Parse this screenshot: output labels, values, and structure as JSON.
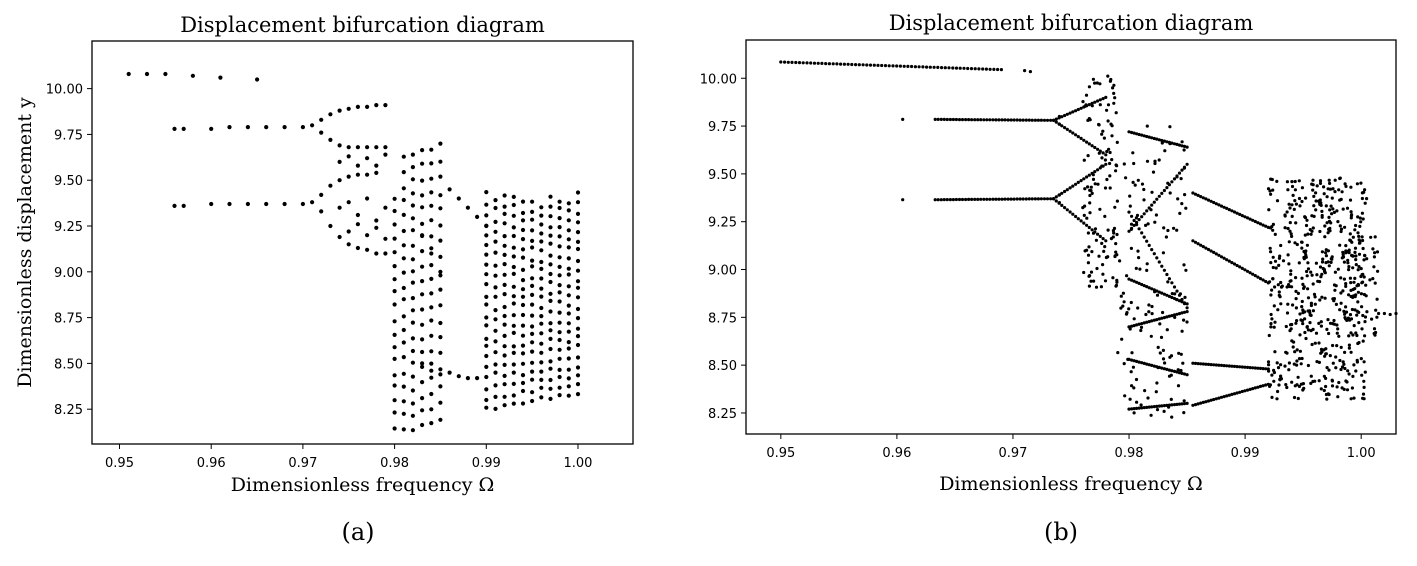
{
  "figure": {
    "panel_labels": [
      "(a)",
      "(b)"
    ]
  },
  "chart_data": [
    {
      "type": "scatter",
      "title": "Displacement bifurcation diagram",
      "xlabel": "Dimensionless frequency Ω",
      "ylabel": "Dimensionless displacement y",
      "xlim": [
        0.947,
        1.006
      ],
      "ylim": [
        8.06,
        10.26
      ],
      "xticks": [
        0.95,
        0.96,
        0.97,
        0.98,
        0.99,
        1.0
      ],
      "xtick_labels": [
        "0.95",
        "0.96",
        "0.97",
        "0.98",
        "0.99",
        "1.00"
      ],
      "yticks": [
        8.25,
        8.5,
        8.75,
        9.0,
        9.25,
        9.5,
        9.75,
        10.0
      ],
      "ytick_labels": [
        "8.25",
        "8.50",
        "8.75",
        "9.00",
        "9.25",
        "9.50",
        "9.75",
        "10.00"
      ],
      "grid": false,
      "marker_color": "#000000",
      "points": [
        [
          0.951,
          10.08
        ],
        [
          0.953,
          10.08
        ],
        [
          0.955,
          10.08
        ],
        [
          0.958,
          10.07
        ],
        [
          0.961,
          10.06
        ],
        [
          0.965,
          10.05
        ],
        [
          0.956,
          9.78
        ],
        [
          0.957,
          9.78
        ],
        [
          0.96,
          9.78
        ],
        [
          0.962,
          9.79
        ],
        [
          0.964,
          9.79
        ],
        [
          0.966,
          9.79
        ],
        [
          0.968,
          9.79
        ],
        [
          0.97,
          9.79
        ],
        [
          0.971,
          9.8
        ],
        [
          0.956,
          9.36
        ],
        [
          0.957,
          9.36
        ],
        [
          0.96,
          9.37
        ],
        [
          0.962,
          9.37
        ],
        [
          0.964,
          9.37
        ],
        [
          0.966,
          9.37
        ],
        [
          0.968,
          9.37
        ],
        [
          0.97,
          9.37
        ],
        [
          0.971,
          9.38
        ],
        [
          0.972,
          9.83
        ],
        [
          0.973,
          9.86
        ],
        [
          0.974,
          9.88
        ],
        [
          0.975,
          9.89
        ],
        [
          0.976,
          9.9
        ],
        [
          0.977,
          9.9
        ],
        [
          0.978,
          9.91
        ],
        [
          0.979,
          9.91
        ],
        [
          0.972,
          9.76
        ],
        [
          0.973,
          9.72
        ],
        [
          0.974,
          9.69
        ],
        [
          0.975,
          9.68
        ],
        [
          0.976,
          9.68
        ],
        [
          0.977,
          9.68
        ],
        [
          0.978,
          9.68
        ],
        [
          0.979,
          9.68
        ],
        [
          0.972,
          9.42
        ],
        [
          0.973,
          9.47
        ],
        [
          0.974,
          9.5
        ],
        [
          0.975,
          9.52
        ],
        [
          0.976,
          9.53
        ],
        [
          0.977,
          9.53
        ],
        [
          0.978,
          9.54
        ],
        [
          0.972,
          9.33
        ],
        [
          0.973,
          9.25
        ],
        [
          0.974,
          9.19
        ],
        [
          0.975,
          9.15
        ],
        [
          0.976,
          9.13
        ],
        [
          0.977,
          9.12
        ],
        [
          0.978,
          9.1
        ],
        [
          0.979,
          9.1
        ],
        [
          0.974,
          9.6
        ],
        [
          0.975,
          9.63
        ],
        [
          0.976,
          9.58
        ],
        [
          0.977,
          9.62
        ],
        [
          0.978,
          9.58
        ],
        [
          0.979,
          9.64
        ],
        [
          0.974,
          9.35
        ],
        [
          0.975,
          9.38
        ],
        [
          0.976,
          9.31
        ],
        [
          0.977,
          9.4
        ],
        [
          0.978,
          9.28
        ],
        [
          0.979,
          9.35
        ],
        [
          0.975,
          9.22
        ],
        [
          0.976,
          9.26
        ],
        [
          0.977,
          9.2
        ],
        [
          0.978,
          9.24
        ],
        [
          0.979,
          9.18
        ],
        [
          0.986,
          9.45
        ],
        [
          0.987,
          9.4
        ],
        [
          0.988,
          9.35
        ],
        [
          0.989,
          9.3
        ],
        [
          0.99,
          9.25
        ],
        [
          0.986,
          8.45
        ],
        [
          0.987,
          8.43
        ],
        [
          0.988,
          8.42
        ],
        [
          0.989,
          8.42
        ],
        [
          0.983,
          9.2
        ],
        [
          0.984,
          9.1
        ],
        [
          0.985,
          9.0
        ],
        [
          0.983,
          8.5
        ],
        [
          0.984,
          8.46
        ],
        [
          0.985,
          8.44
        ]
      ],
      "bands": [
        {
          "x": 0.98,
          "ymin": 8.15,
          "ymax": 9.4,
          "n": 18
        },
        {
          "x": 0.981,
          "ymin": 8.14,
          "ymax": 9.62,
          "n": 20
        },
        {
          "x": 0.982,
          "ymin": 8.14,
          "ymax": 9.65,
          "n": 22
        },
        {
          "x": 0.983,
          "ymin": 8.16,
          "ymax": 9.66,
          "n": 20
        },
        {
          "x": 0.984,
          "ymin": 8.18,
          "ymax": 9.67,
          "n": 20
        },
        {
          "x": 0.985,
          "ymin": 8.2,
          "ymax": 9.69,
          "n": 18
        },
        {
          "x": 0.99,
          "ymin": 8.25,
          "ymax": 9.43,
          "n": 22
        },
        {
          "x": 0.991,
          "ymin": 8.26,
          "ymax": 9.4,
          "n": 20
        },
        {
          "x": 0.992,
          "ymin": 8.27,
          "ymax": 9.42,
          "n": 22
        },
        {
          "x": 0.993,
          "ymin": 8.28,
          "ymax": 9.41,
          "n": 22
        },
        {
          "x": 0.994,
          "ymin": 8.29,
          "ymax": 9.38,
          "n": 22
        },
        {
          "x": 0.995,
          "ymin": 8.3,
          "ymax": 9.38,
          "n": 22
        },
        {
          "x": 0.996,
          "ymin": 8.31,
          "ymax": 9.36,
          "n": 22
        },
        {
          "x": 0.997,
          "ymin": 8.31,
          "ymax": 9.41,
          "n": 22
        },
        {
          "x": 0.998,
          "ymin": 8.32,
          "ymax": 9.39,
          "n": 22
        },
        {
          "x": 0.999,
          "ymin": 8.32,
          "ymax": 9.38,
          "n": 22
        },
        {
          "x": 1.0,
          "ymin": 8.33,
          "ymax": 9.43,
          "n": 22
        }
      ]
    },
    {
      "type": "scatter",
      "title": "Displacement bifurcation diagram",
      "xlabel": "Dimensionless frequency Ω",
      "ylabel": "Dimensionless displacement y",
      "xlim": [
        0.947,
        1.003
      ],
      "ylim": [
        8.14,
        10.2
      ],
      "xticks": [
        0.95,
        0.96,
        0.97,
        0.98,
        0.99,
        1.0
      ],
      "xtick_labels": [
        "0.95",
        "0.96",
        "0.97",
        "0.98",
        "0.99",
        "1.00"
      ],
      "yticks": [
        8.25,
        8.5,
        8.75,
        9.0,
        9.25,
        9.5,
        9.75,
        10.0
      ],
      "ytick_labels": [
        "8.25",
        "8.50",
        "8.75",
        "9.00",
        "9.25",
        "9.50",
        "9.75",
        "10.00"
      ],
      "grid": false,
      "marker_color": "#000000",
      "curves": [
        {
          "x0": 0.95,
          "x1": 0.969,
          "y0": 10.085,
          "y1": 10.045,
          "n": 60
        },
        {
          "x0": 0.9633,
          "x1": 0.9735,
          "y0": 9.785,
          "y1": 9.78,
          "n": 40
        },
        {
          "x0": 0.9633,
          "x1": 0.9735,
          "y0": 9.365,
          "y1": 9.37,
          "n": 40
        },
        {
          "x0": 0.9735,
          "x1": 0.978,
          "y0": 9.78,
          "y1": 9.9,
          "n": 20
        },
        {
          "x0": 0.9735,
          "x1": 0.978,
          "y0": 9.78,
          "y1": 9.6,
          "n": 20
        },
        {
          "x0": 0.9735,
          "x1": 0.978,
          "y0": 9.37,
          "y1": 9.55,
          "n": 20
        },
        {
          "x0": 0.9735,
          "x1": 0.978,
          "y0": 9.37,
          "y1": 9.15,
          "n": 20
        },
        {
          "x0": 0.98,
          "x1": 0.985,
          "y0": 9.72,
          "y1": 9.64,
          "n": 24
        },
        {
          "x0": 0.98,
          "x1": 0.985,
          "y0": 9.2,
          "y1": 9.55,
          "n": 24
        },
        {
          "x0": 0.98,
          "x1": 0.985,
          "y0": 9.3,
          "y1": 8.8,
          "n": 24
        },
        {
          "x0": 0.98,
          "x1": 0.985,
          "y0": 8.95,
          "y1": 8.82,
          "n": 24
        },
        {
          "x0": 0.98,
          "x1": 0.985,
          "y0": 8.7,
          "y1": 8.78,
          "n": 24
        },
        {
          "x0": 0.98,
          "x1": 0.985,
          "y0": 8.53,
          "y1": 8.45,
          "n": 24
        },
        {
          "x0": 0.98,
          "x1": 0.985,
          "y0": 8.27,
          "y1": 8.3,
          "n": 24
        },
        {
          "x0": 0.9855,
          "x1": 0.992,
          "y0": 9.4,
          "y1": 9.22,
          "n": 30
        },
        {
          "x0": 0.9855,
          "x1": 0.992,
          "y0": 9.15,
          "y1": 8.93,
          "n": 30
        },
        {
          "x0": 0.9855,
          "x1": 0.992,
          "y0": 8.51,
          "y1": 8.48,
          "n": 30
        },
        {
          "x0": 0.9855,
          "x1": 0.992,
          "y0": 8.29,
          "y1": 8.4,
          "n": 30
        }
      ],
      "points": [
        [
          0.9605,
          9.785
        ],
        [
          0.9605,
          9.365
        ],
        [
          0.971,
          10.04
        ],
        [
          0.9715,
          10.035
        ],
        [
          0.974,
          9.8
        ],
        [
          0.974,
          9.76
        ],
        [
          0.974,
          9.39
        ],
        [
          0.974,
          9.35
        ],
        [
          1.0015,
          8.77
        ],
        [
          1.002,
          8.77
        ],
        [
          1.0025,
          8.765
        ],
        [
          1.003,
          8.77
        ]
      ],
      "bands": [
        {
          "x0": 0.976,
          "x1": 0.979,
          "ymin": 8.9,
          "ymax": 10.02,
          "n": 120
        },
        {
          "x0": 0.979,
          "x1": 0.985,
          "ymin": 8.22,
          "ymax": 9.75,
          "n": 140
        },
        {
          "x0": 0.992,
          "x1": 1.0005,
          "ymin": 8.32,
          "ymax": 9.48,
          "n": 520
        },
        {
          "x0": 0.9985,
          "x1": 1.0015,
          "ymin": 8.6,
          "ymax": 9.2,
          "n": 60
        }
      ]
    }
  ]
}
